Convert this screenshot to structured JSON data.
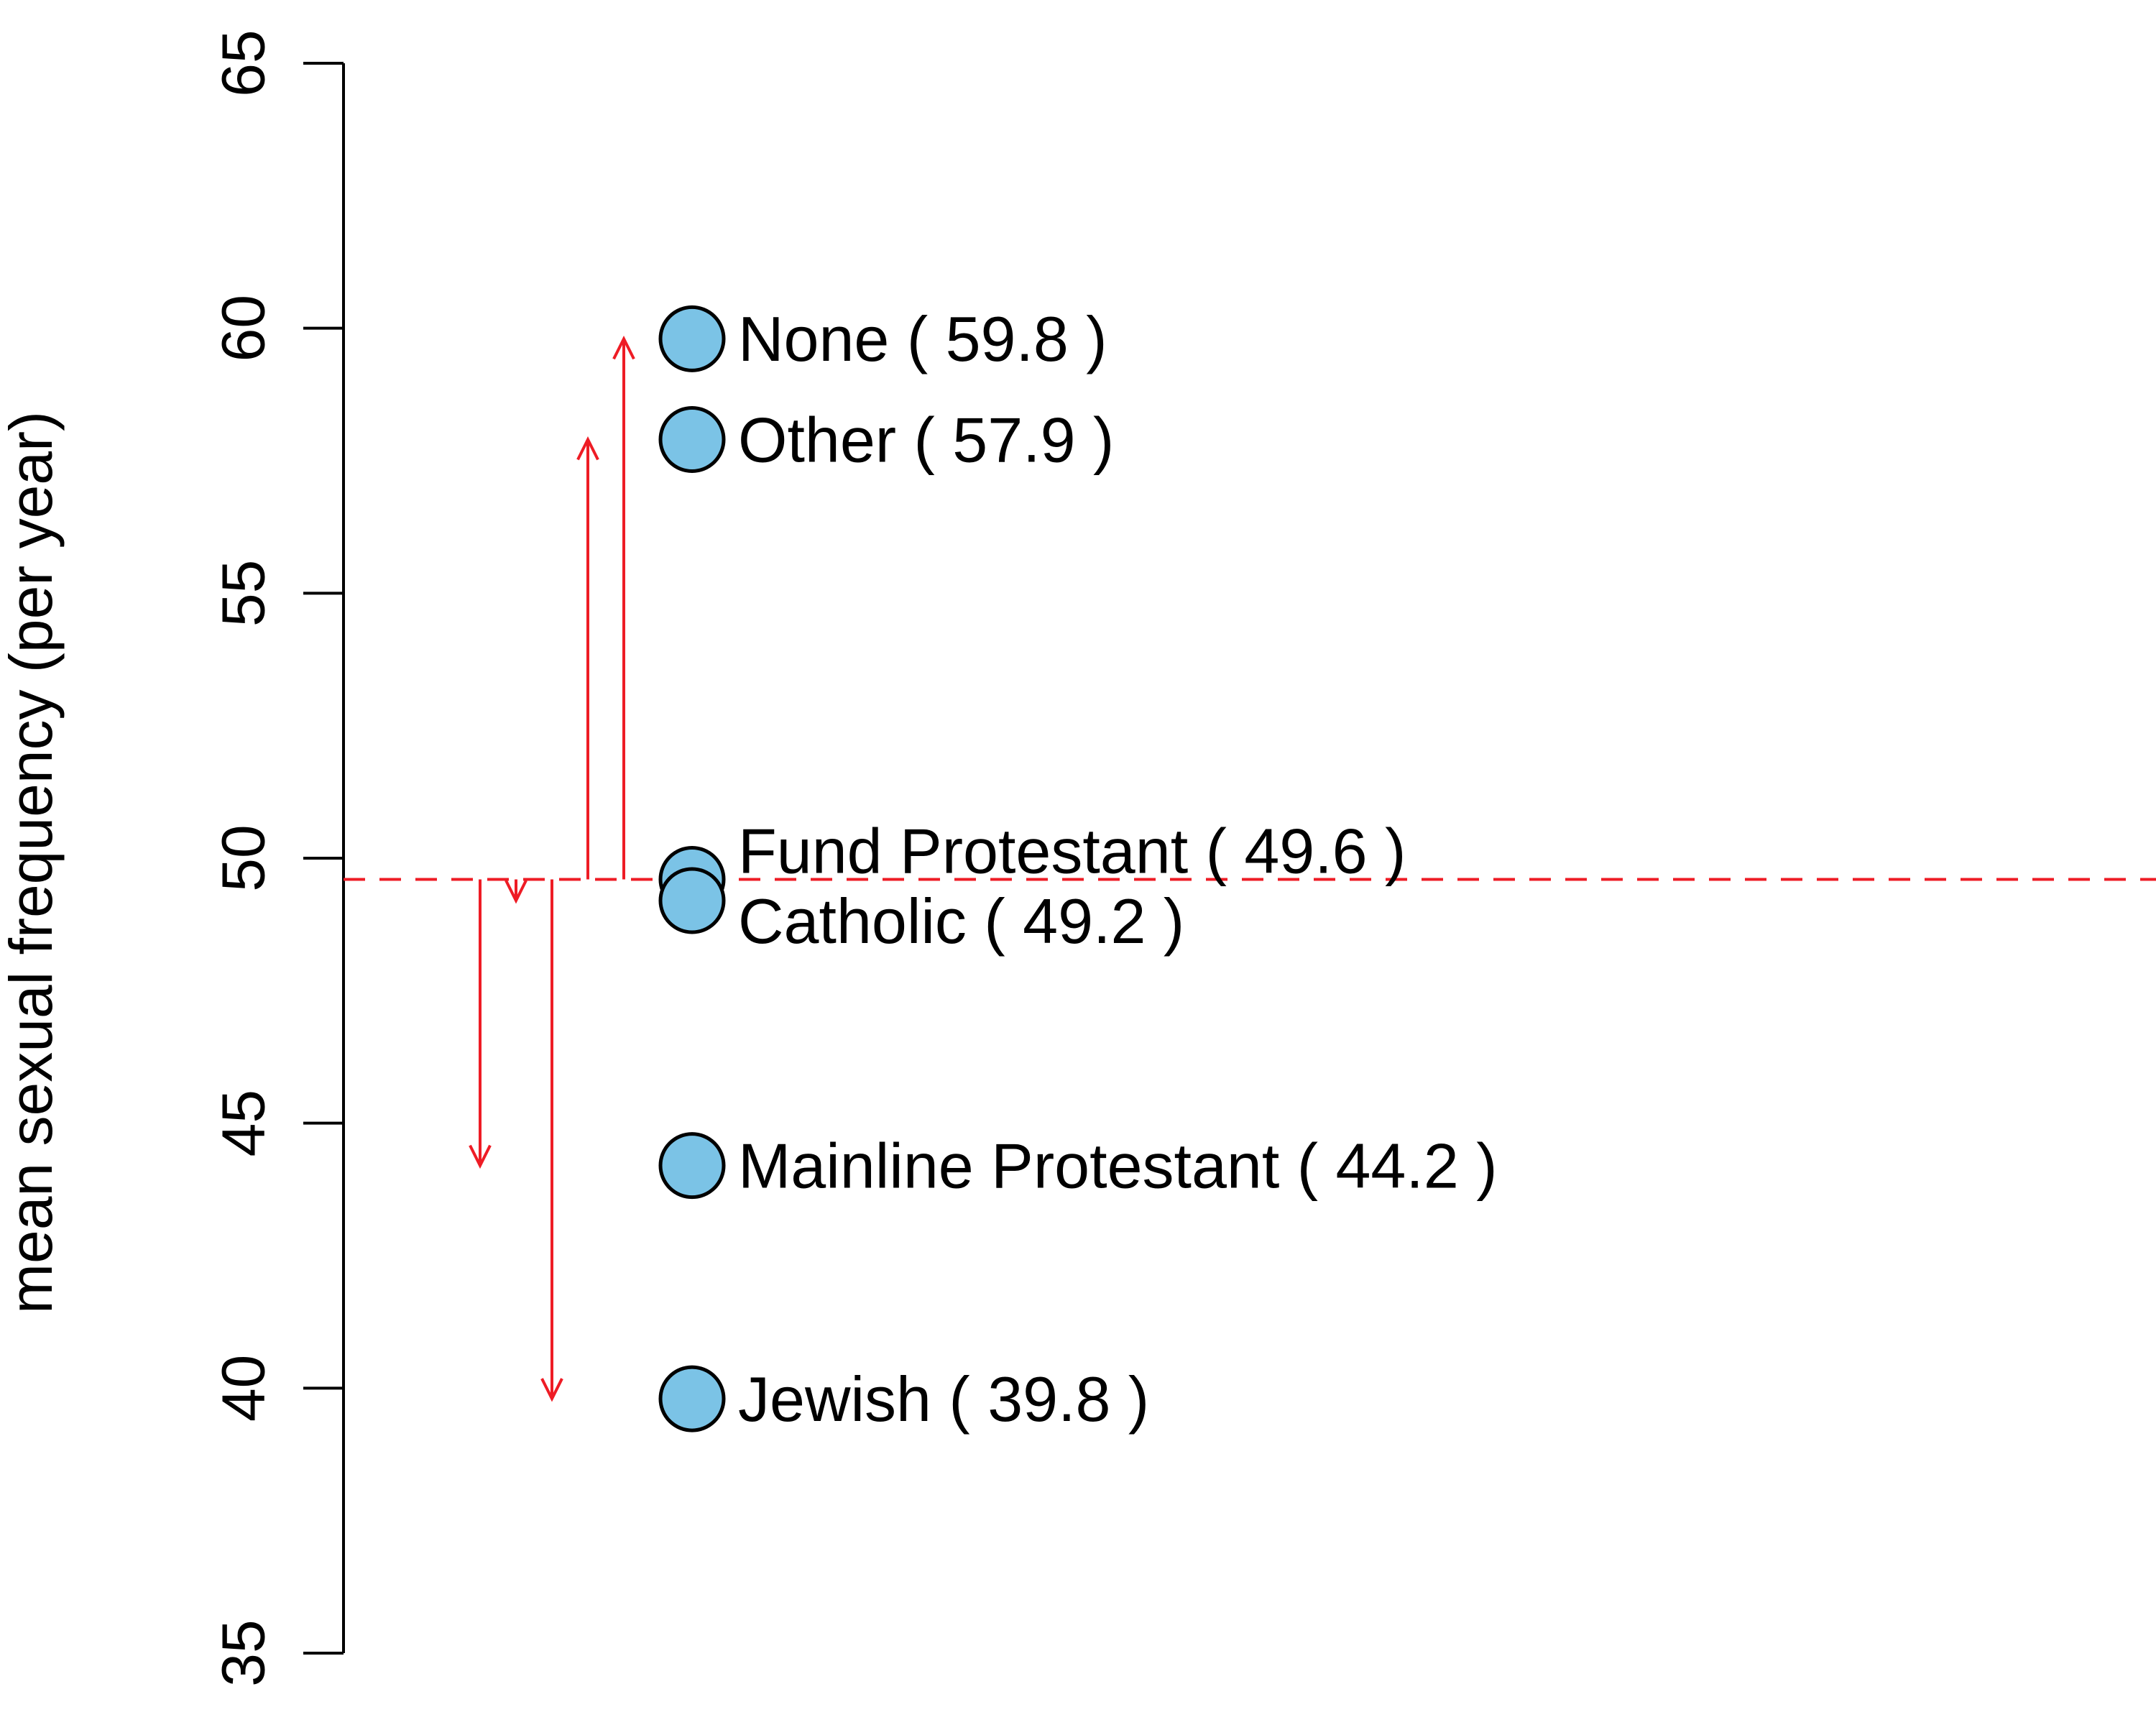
{
  "chart_data": {
    "type": "scatter",
    "ylabel": "mean sexual frequency (per year)",
    "ylim": [
      35,
      65
    ],
    "yticks": [
      "35",
      "40",
      "45",
      "50",
      "55",
      "60",
      "65"
    ],
    "grid": false,
    "reference_line": {
      "value": 49.6,
      "style": "dashed",
      "color": "#ee1c25"
    },
    "points": [
      {
        "category": "None",
        "value": 59.8,
        "label": "None ( 59.8 )"
      },
      {
        "category": "Other",
        "value": 57.9,
        "label": "Other ( 57.9 )"
      },
      {
        "category": "Fund Protestant",
        "value": 49.6,
        "label": "Fund Protestant ( 49.6 )"
      },
      {
        "category": "Catholic",
        "value": 49.2,
        "label": "Catholic ( 49.2 )"
      },
      {
        "category": "Mainline Protestant",
        "value": 44.2,
        "label": "Mainline Protestant ( 44.2 )"
      },
      {
        "category": "Jewish",
        "value": 39.8,
        "label": "Jewish ( 39.8 )"
      }
    ],
    "arrows": [
      {
        "from": 49.6,
        "to": 44.2
      },
      {
        "from": 49.6,
        "to": 49.2
      },
      {
        "from": 49.6,
        "to": 39.8
      },
      {
        "from": 49.6,
        "to": 57.9
      },
      {
        "from": 49.6,
        "to": 59.8
      }
    ],
    "colors": {
      "point_fill": "#7bc3e6",
      "point_stroke": "#000000",
      "arrow": "#ee1c25",
      "axis": "#000000"
    }
  }
}
